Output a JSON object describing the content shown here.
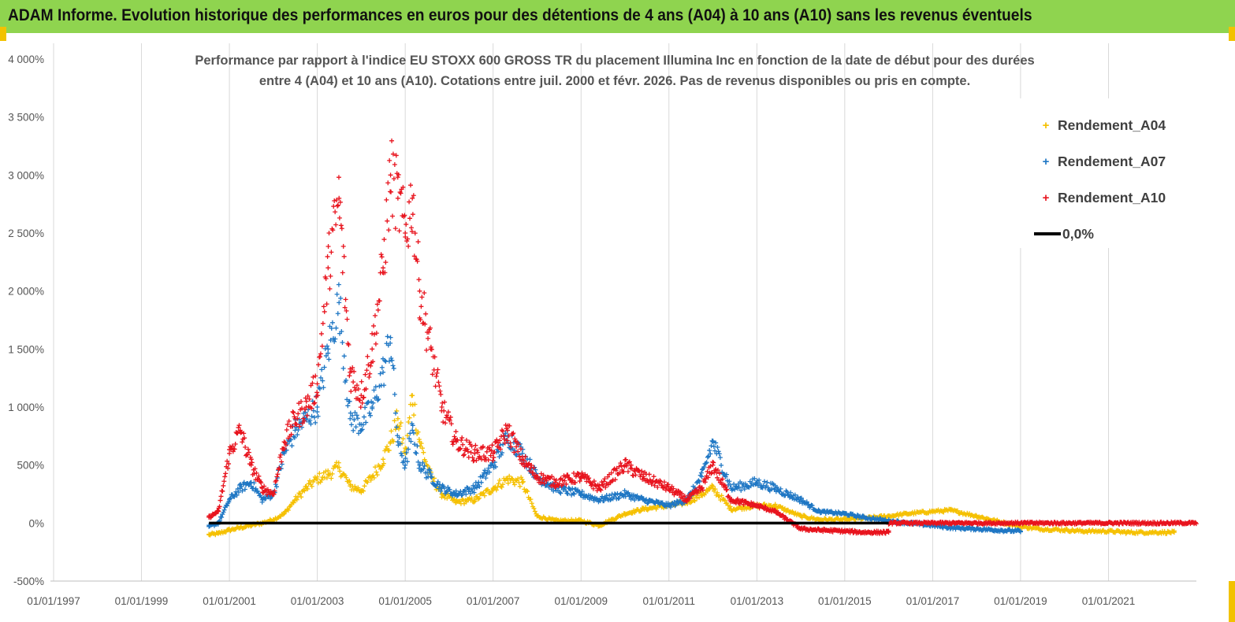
{
  "header": {
    "title": "ADAM Informe. Evolution historique des performances en euros pour des détentions de 4 ans (A04) à 10 ans (A10) sans les revenus éventuels"
  },
  "colors": {
    "banner": "#8fd44f",
    "accent": "#f2c200",
    "A04": "#f5c000",
    "A07": "#1f77c4",
    "A10": "#e8141e",
    "zero": "#000000",
    "grid": "#d9d9d9"
  },
  "chart_data": {
    "type": "scatter",
    "title_lines": [
      "Performance par rapport à l'indice EU STOXX 600 GROSS TR  du placement Illumina Inc en fonction de la date de début pour des durées",
      "entre 4 (A04) et 10 ans (A10). Cotations entre juil. 2000 et févr. 2026.  Pas de revenus disponibles ou pris en compte."
    ],
    "xlabel": "",
    "ylabel": "",
    "x_range": [
      "1997-01-01",
      "2022-12-31"
    ],
    "x_ticks": [
      "01/01/1997",
      "01/01/1999",
      "01/01/2001",
      "01/01/2003",
      "01/01/2005",
      "01/01/2007",
      "01/01/2009",
      "01/01/2011",
      "01/01/2013",
      "01/01/2015",
      "01/01/2017",
      "01/01/2019",
      "01/01/2021"
    ],
    "y_range": [
      -500,
      4000
    ],
    "y_ticks": [
      "-500%",
      "0%",
      "500%",
      "1 000%",
      "1 500%",
      "2 000%",
      "2 500%",
      "3 000%",
      "3 500%",
      "4 000%"
    ],
    "y_tick_values": [
      -500,
      0,
      500,
      1000,
      1500,
      2000,
      2500,
      3000,
      3500,
      4000
    ],
    "grid": "vertical",
    "legend_position": "top-right",
    "series": [
      {
        "name": "Rendement_A04",
        "marker": "+",
        "x": [
          "2000-07-15",
          "2000-10-01",
          "2001-01-01",
          "2001-04-01",
          "2001-07-01",
          "2001-10-01",
          "2002-01-01",
          "2002-04-01",
          "2002-07-01",
          "2002-10-01",
          "2003-01-01",
          "2003-04-01",
          "2003-07-01",
          "2003-10-01",
          "2004-01-01",
          "2004-04-01",
          "2004-07-01",
          "2004-09-01",
          "2004-11-01",
          "2005-01-01",
          "2005-03-01",
          "2005-05-01",
          "2005-08-01",
          "2005-11-01",
          "2006-03-01",
          "2006-08-01",
          "2007-01-01",
          "2007-05-01",
          "2007-09-01",
          "2008-01-01",
          "2008-06-01",
          "2009-01-01",
          "2009-06-01",
          "2010-01-01",
          "2010-06-01",
          "2011-01-01",
          "2011-06-01",
          "2011-10-01",
          "2012-01-01",
          "2012-06-01",
          "2013-01-01",
          "2013-06-01",
          "2014-01-01",
          "2014-06-01",
          "2015-01-01",
          "2015-06-01",
          "2016-01-01",
          "2016-06-01",
          "2017-01-01",
          "2017-06-01",
          "2018-01-01",
          "2018-06-01",
          "2019-01-01",
          "2019-06-01",
          "2020-01-01",
          "2020-06-01",
          "2021-01-01",
          "2021-06-01",
          "2022-01-01",
          "2022-07-01"
        ],
        "y": [
          -100,
          -90,
          -60,
          -40,
          -20,
          0,
          30,
          80,
          200,
          300,
          380,
          420,
          480,
          320,
          280,
          400,
          550,
          700,
          900,
          600,
          1100,
          700,
          400,
          250,
          180,
          200,
          300,
          380,
          350,
          60,
          20,
          20,
          -20,
          80,
          120,
          150,
          180,
          250,
          300,
          120,
          150,
          150,
          60,
          30,
          30,
          40,
          60,
          80,
          100,
          110,
          60,
          20,
          -30,
          -50,
          -60,
          -70,
          -70,
          -80,
          -80,
          -80
        ]
      },
      {
        "name": "Rendement_A07",
        "marker": "+",
        "x": [
          "2000-07-15",
          "2000-10-01",
          "2001-01-01",
          "2001-04-01",
          "2001-07-01",
          "2001-10-01",
          "2002-01-01",
          "2002-04-01",
          "2002-07-01",
          "2002-10-01",
          "2003-01-01",
          "2003-04-01",
          "2003-07-01",
          "2003-10-01",
          "2004-01-01",
          "2004-04-01",
          "2004-07-01",
          "2004-09-01",
          "2004-11-01",
          "2005-01-01",
          "2005-03-01",
          "2005-05-01",
          "2005-08-01",
          "2005-11-01",
          "2006-03-01",
          "2006-08-01",
          "2007-01-01",
          "2007-05-01",
          "2007-09-01",
          "2008-01-01",
          "2008-06-01",
          "2009-01-01",
          "2009-06-01",
          "2010-01-01",
          "2010-06-01",
          "2011-01-01",
          "2011-06-01",
          "2011-10-01",
          "2012-01-01",
          "2012-06-01",
          "2013-01-01",
          "2013-06-01",
          "2014-01-01",
          "2014-06-01",
          "2015-01-01",
          "2015-06-01",
          "2016-01-01",
          "2016-06-01",
          "2017-01-01",
          "2017-06-01",
          "2018-01-01",
          "2018-06-01",
          "2019-01-01"
        ],
        "y": [
          -30,
          0,
          200,
          300,
          350,
          200,
          250,
          600,
          800,
          900,
          1000,
          1500,
          1900,
          900,
          850,
          1000,
          1300,
          1600,
          700,
          500,
          800,
          500,
          400,
          300,
          250,
          300,
          500,
          750,
          600,
          400,
          300,
          250,
          200,
          250,
          200,
          150,
          200,
          400,
          700,
          300,
          350,
          300,
          200,
          100,
          80,
          50,
          20,
          0,
          -20,
          -40,
          -50,
          -60,
          -70
        ]
      },
      {
        "name": "Rendement_A10",
        "marker": "+",
        "x": [
          "2000-07-15",
          "2000-10-01",
          "2001-01-01",
          "2001-04-01",
          "2001-07-01",
          "2001-10-01",
          "2002-01-01",
          "2002-04-01",
          "2002-07-01",
          "2002-10-01",
          "2003-01-01",
          "2003-04-01",
          "2003-07-01",
          "2003-10-01",
          "2004-01-01",
          "2004-04-01",
          "2004-07-01",
          "2004-09-01",
          "2004-11-01",
          "2005-01-01",
          "2005-03-01",
          "2005-05-01",
          "2005-08-01",
          "2005-11-01",
          "2006-03-01",
          "2006-08-01",
          "2007-01-01",
          "2007-05-01",
          "2007-09-01",
          "2008-01-01",
          "2008-06-01",
          "2009-01-01",
          "2009-06-01",
          "2010-01-01",
          "2010-06-01",
          "2011-01-01",
          "2011-06-01",
          "2011-10-01",
          "2012-01-01",
          "2012-06-01",
          "2013-01-01",
          "2013-06-01",
          "2014-01-01",
          "2014-06-01",
          "2015-01-01",
          "2015-06-01",
          "2016-01-01"
        ],
        "y": [
          50,
          100,
          600,
          800,
          500,
          300,
          250,
          700,
          900,
          1000,
          1200,
          2200,
          2800,
          1300,
          1100,
          1500,
          2200,
          3000,
          2800,
          2500,
          2800,
          2000,
          1500,
          1000,
          700,
          600,
          600,
          800,
          550,
          400,
          350,
          400,
          300,
          500,
          400,
          300,
          200,
          300,
          500,
          200,
          150,
          100,
          -50,
          -60,
          -70,
          -80,
          -80
        ]
      },
      {
        "name": "0,0%",
        "type": "line",
        "x": [
          "2000-07-15",
          "2022-12-31"
        ],
        "y": [
          0,
          0
        ]
      }
    ]
  }
}
